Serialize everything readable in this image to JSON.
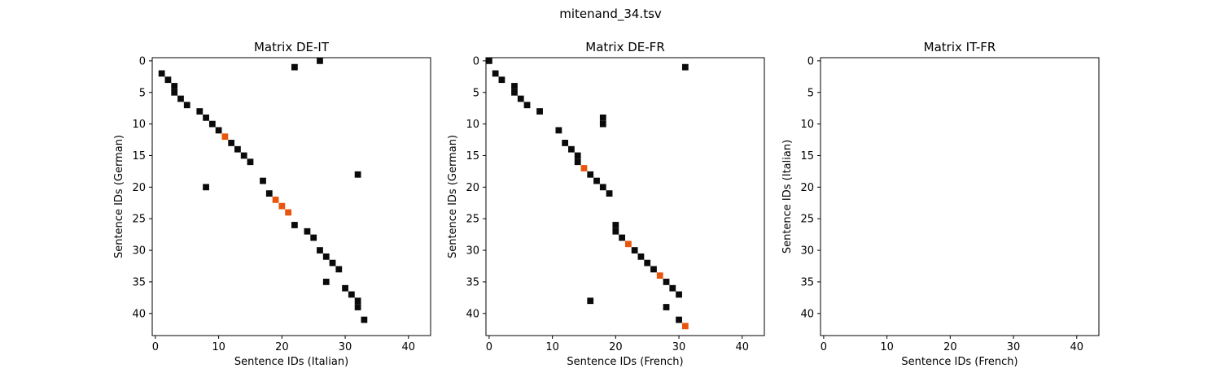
{
  "figure": {
    "title": "mitenand_34.tsv"
  },
  "colors": {
    "match": "#0a0a0a",
    "highlight": "#e8560e",
    "background": "#ffffff",
    "axis": "#000000"
  },
  "chart_data": [
    {
      "type": "heatmap",
      "title": "Matrix DE-IT",
      "xlabel": "Sentence IDs (Italian)",
      "ylabel": "Sentence IDs (German)",
      "xlim": [
        -0.5,
        43.5
      ],
      "ylim": [
        43.5,
        -0.5
      ],
      "xticks": [
        0,
        10,
        20,
        30,
        40
      ],
      "yticks": [
        0,
        5,
        10,
        15,
        20,
        25,
        30,
        35,
        40
      ],
      "grid": false,
      "cells_black": [
        [
          26,
          0
        ],
        [
          22,
          1
        ],
        [
          1,
          2
        ],
        [
          2,
          3
        ],
        [
          3,
          4
        ],
        [
          3,
          5
        ],
        [
          4,
          6
        ],
        [
          5,
          7
        ],
        [
          7,
          8
        ],
        [
          8,
          9
        ],
        [
          9,
          10
        ],
        [
          10,
          11
        ],
        [
          12,
          13
        ],
        [
          13,
          14
        ],
        [
          14,
          15
        ],
        [
          15,
          16
        ],
        [
          32,
          18
        ],
        [
          17,
          19
        ],
        [
          8,
          20
        ],
        [
          18,
          21
        ],
        [
          22,
          26
        ],
        [
          24,
          27
        ],
        [
          25,
          28
        ],
        [
          26,
          30
        ],
        [
          27,
          31
        ],
        [
          28,
          32
        ],
        [
          29,
          33
        ],
        [
          27,
          35
        ],
        [
          30,
          36
        ],
        [
          31,
          37
        ],
        [
          32,
          38
        ],
        [
          32,
          39
        ],
        [
          33,
          41
        ]
      ],
      "cells_orange": [
        [
          11,
          12
        ],
        [
          19,
          22
        ],
        [
          20,
          23
        ],
        [
          21,
          24
        ]
      ]
    },
    {
      "type": "heatmap",
      "title": "Matrix DE-FR",
      "xlabel": "Sentence IDs (French)",
      "ylabel": "Sentence IDs (German)",
      "xlim": [
        -0.5,
        43.5
      ],
      "ylim": [
        43.5,
        -0.5
      ],
      "xticks": [
        0,
        10,
        20,
        30,
        40
      ],
      "yticks": [
        0,
        5,
        10,
        15,
        20,
        25,
        30,
        35,
        40
      ],
      "grid": false,
      "cells_black": [
        [
          0,
          0
        ],
        [
          31,
          1
        ],
        [
          1,
          2
        ],
        [
          2,
          3
        ],
        [
          4,
          4
        ],
        [
          4,
          5
        ],
        [
          5,
          6
        ],
        [
          6,
          7
        ],
        [
          8,
          8
        ],
        [
          18,
          9
        ],
        [
          18,
          10
        ],
        [
          11,
          11
        ],
        [
          12,
          13
        ],
        [
          13,
          14
        ],
        [
          14,
          15
        ],
        [
          14,
          16
        ],
        [
          16,
          18
        ],
        [
          17,
          19
        ],
        [
          18,
          20
        ],
        [
          19,
          21
        ],
        [
          20,
          26
        ],
        [
          20,
          27
        ],
        [
          21,
          28
        ],
        [
          23,
          30
        ],
        [
          24,
          31
        ],
        [
          25,
          32
        ],
        [
          26,
          33
        ],
        [
          28,
          35
        ],
        [
          29,
          36
        ],
        [
          30,
          37
        ],
        [
          16,
          38
        ],
        [
          28,
          39
        ],
        [
          30,
          41
        ]
      ],
      "cells_orange": [
        [
          15,
          17
        ],
        [
          22,
          29
        ],
        [
          27,
          34
        ],
        [
          31,
          42
        ]
      ]
    },
    {
      "type": "heatmap",
      "title": "Matrix IT-FR",
      "xlabel": "Sentence IDs (French)",
      "ylabel": "Sentence IDs (Italian)",
      "xlim": [
        -0.5,
        43.5
      ],
      "ylim": [
        43.5,
        -0.5
      ],
      "xticks": [
        0,
        10,
        20,
        30,
        40
      ],
      "yticks": [
        0,
        5,
        10,
        15,
        20,
        25,
        30,
        35,
        40
      ],
      "grid": false,
      "cells_black": [],
      "cells_orange": []
    }
  ]
}
